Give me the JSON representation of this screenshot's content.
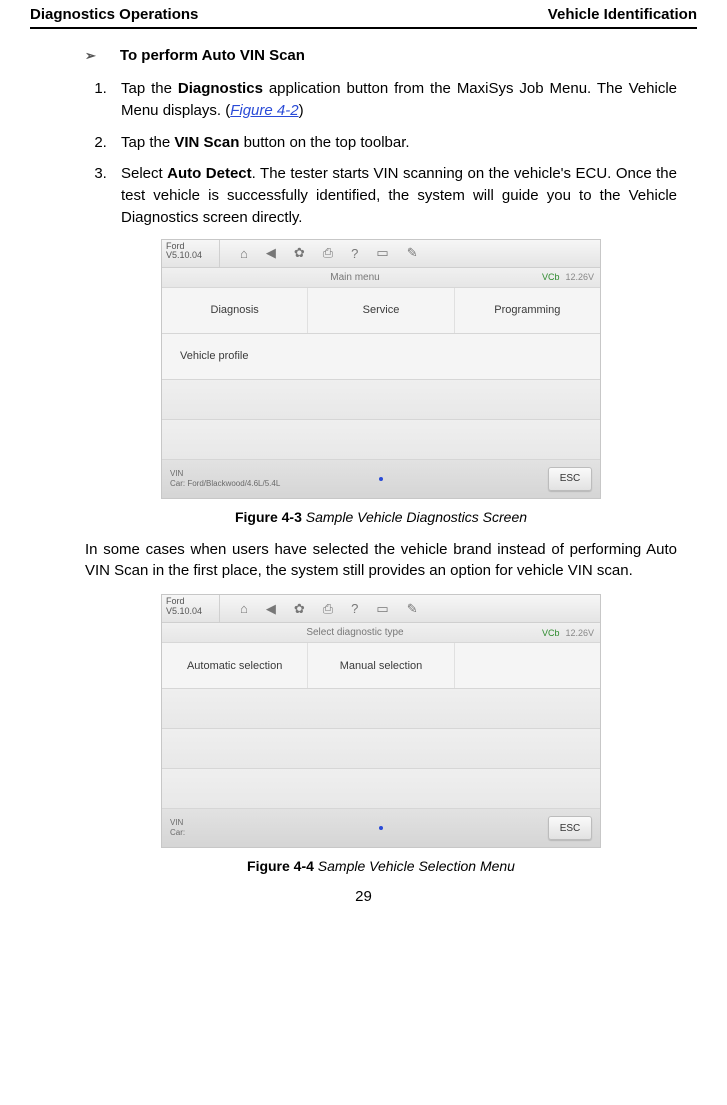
{
  "header": {
    "left": "Diagnostics Operations",
    "right": "Vehicle Identification"
  },
  "section": {
    "title": "To perform Auto VIN Scan"
  },
  "steps": {
    "s1_a": "Tap the ",
    "s1_b": "Diagnostics",
    "s1_c": " application button from the MaxiSys Job Menu. The Vehicle Menu displays. (",
    "s1_link": "Figure 4-2",
    "s1_d": ")",
    "s2_a": "Tap the ",
    "s2_b": "VIN Scan",
    "s2_c": " button on the top toolbar.",
    "s3_a": "Select ",
    "s3_b": "Auto Detect",
    "s3_c": ". The tester starts VIN scanning on the vehicle's ECU. Once the test vehicle is successfully identified, the system will guide you to the Vehicle Diagnostics screen directly."
  },
  "fig3": {
    "caption_label": "Figure 4-3",
    "caption_desc": " Sample Vehicle Diagnostics Screen",
    "brand": "Ford",
    "version": "V5.10.04",
    "subtitle": "Main menu",
    "vc_label": "VCb",
    "batt": "12.26V",
    "items": {
      "diagnosis": "Diagnosis",
      "service": "Service",
      "programming": "Programming",
      "profile": "Vehicle profile"
    },
    "vin_label": "VIN",
    "car_label": "Car: Ford/Blackwood/4.6L/5.4L",
    "esc": "ESC",
    "toolbar_icons": {
      "home": "⌂",
      "back": "◀",
      "settings": "✿",
      "print": "⎙",
      "help": "?",
      "save": "▭",
      "search": "✎"
    }
  },
  "para1": "In some cases when users have selected the vehicle brand instead of performing Auto VIN Scan in the first place, the system still provides an option for vehicle VIN scan.",
  "fig4": {
    "caption_label": "Figure 4-4",
    "caption_desc": " Sample Vehicle Selection Menu",
    "brand": "Ford",
    "version": "V5.10.04",
    "subtitle": "Select diagnostic type",
    "vc_label": "VCb",
    "batt": "12.26V",
    "items": {
      "auto": "Automatic selection",
      "manual": "Manual selection"
    },
    "vin_label": "VIN",
    "car_label": "Car:",
    "esc": "ESC"
  },
  "page_number": "29"
}
